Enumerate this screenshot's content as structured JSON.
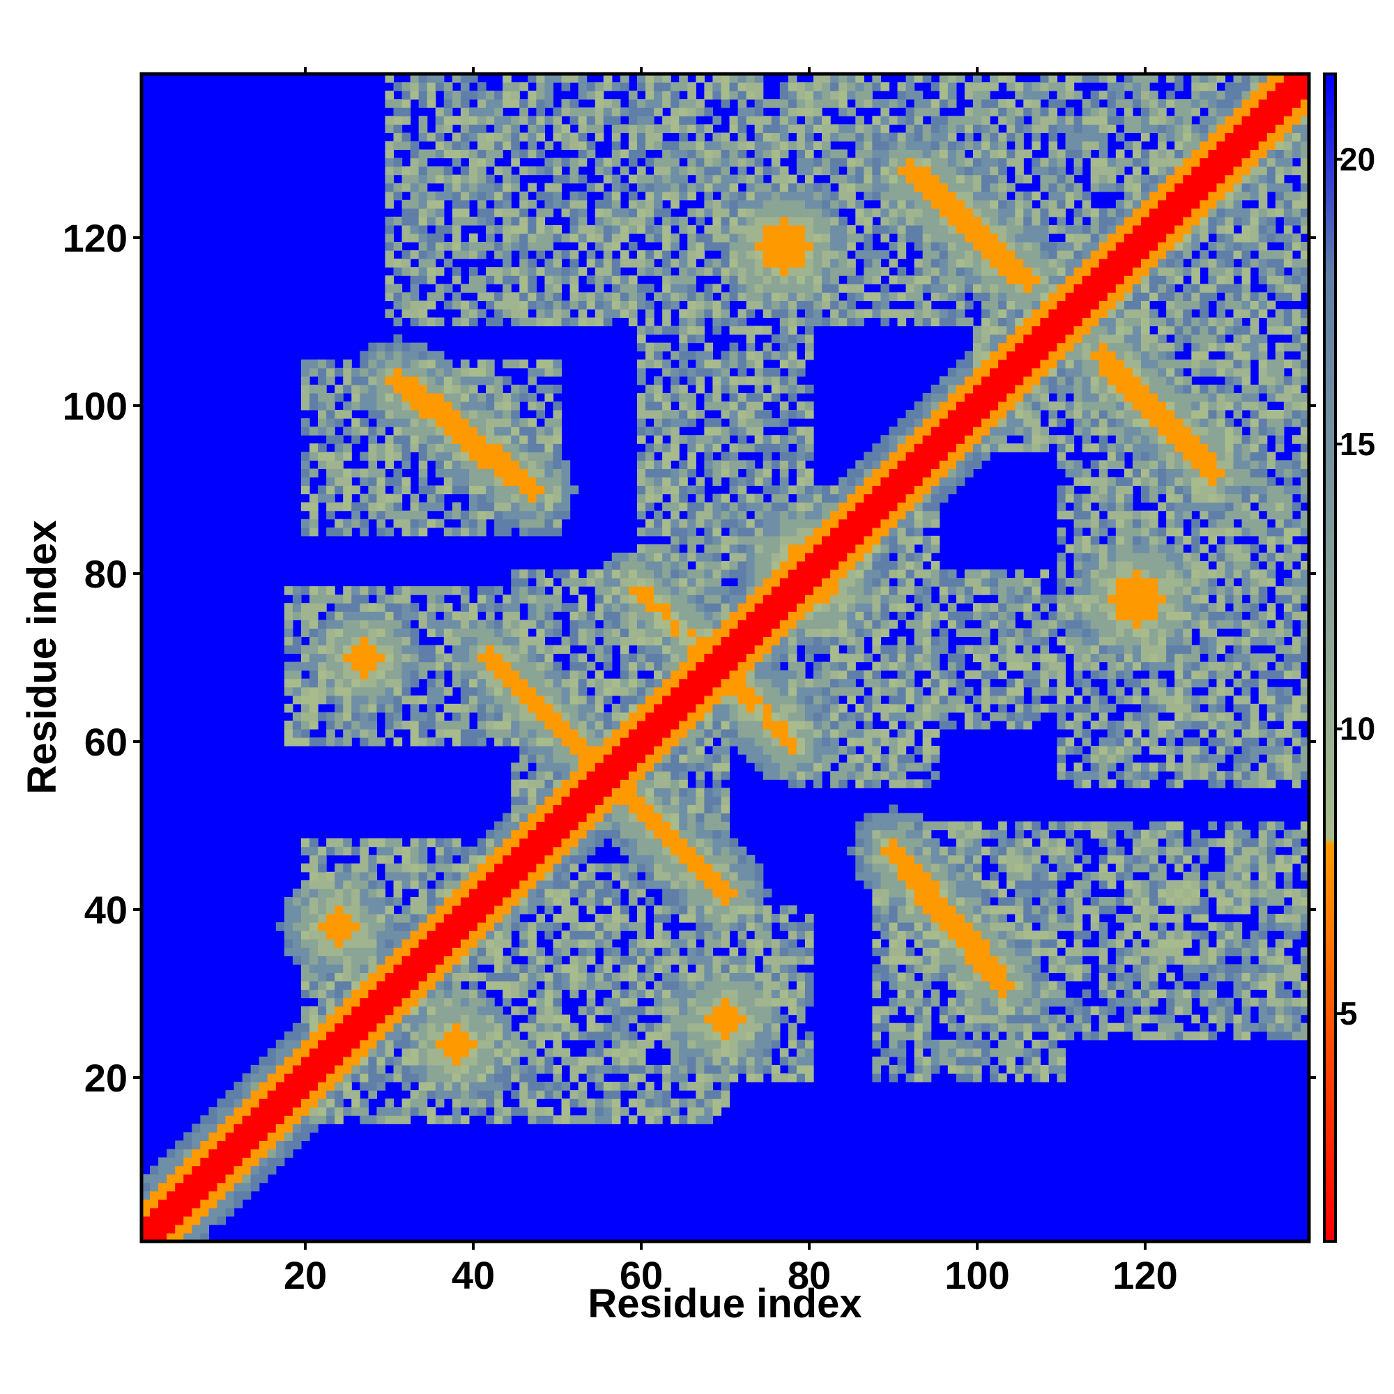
{
  "chart_data": {
    "type": "heatmap",
    "title": "",
    "xlabel": "Residue index",
    "ylabel": "Residue index",
    "xlim": [
      1,
      139
    ],
    "ylim": [
      1,
      139
    ],
    "n_residues": 139,
    "x_ticks": [
      20,
      40,
      60,
      80,
      100,
      120
    ],
    "y_ticks": [
      20,
      40,
      60,
      80,
      100,
      120
    ],
    "colorbar": {
      "range": [
        1,
        21.5
      ],
      "ticks": [
        5,
        10,
        15,
        20
      ],
      "colors": [
        "#ff0000",
        "#ff9900",
        "#a8bb8c",
        "#5f7fa8",
        "#0000ff"
      ],
      "stops": [
        1,
        8,
        10,
        18,
        21.5
      ]
    },
    "grid": false,
    "values_description_only_for_rendering": null,
    "contact_features": [
      {
        "type": "diagonal",
        "value": 1.5
      },
      {
        "type": "band",
        "from": [
          2,
          2
        ],
        "to": [
          139,
          139
        ],
        "offset_min": 1,
        "offset_max": 4,
        "value": 7
      },
      {
        "type": "antiparallel",
        "from": [
          56,
          56
        ],
        "to": [
          42,
          70
        ],
        "value": 6
      },
      {
        "type": "antiparallel",
        "from": [
          56,
          56
        ],
        "to": [
          70,
          42
        ],
        "value": 6
      },
      {
        "type": "antiparallel",
        "from": [
          60,
          78
        ],
        "to": [
          78,
          60
        ],
        "value": 6.5
      },
      {
        "type": "antiparallel",
        "from": [
          33,
          102
        ],
        "to": [
          47,
          90
        ],
        "value": 6
      },
      {
        "type": "antiparallel",
        "from": [
          102,
          33
        ],
        "to": [
          90,
          47
        ],
        "value": 6
      },
      {
        "type": "antiparallel",
        "from": [
          94,
          127
        ],
        "to": [
          106,
          115
        ],
        "value": 6
      },
      {
        "type": "antiparallel",
        "from": [
          127,
          94
        ],
        "to": [
          115,
          106
        ],
        "value": 6
      },
      {
        "type": "antiparallel",
        "from": [
          92,
          44
        ],
        "to": [
          103,
          31
        ],
        "value": 6
      },
      {
        "type": "antiparallel",
        "from": [
          44,
          92
        ],
        "to": [
          31,
          103
        ],
        "value": 6
      },
      {
        "type": "antiparallel",
        "from": [
          116,
          104
        ],
        "to": [
          128,
          92
        ],
        "value": 6
      },
      {
        "type": "antiparallel",
        "from": [
          104,
          116
        ],
        "to": [
          92,
          128
        ],
        "value": 6
      },
      {
        "type": "patch",
        "center": [
          27,
          70
        ],
        "radius": 2,
        "value": 6
      },
      {
        "type": "patch",
        "center": [
          70,
          27
        ],
        "radius": 2,
        "value": 6
      },
      {
        "type": "patch",
        "center": [
          38,
          24
        ],
        "radius": 2,
        "value": 6
      },
      {
        "type": "patch",
        "center": [
          24,
          38
        ],
        "radius": 2,
        "value": 6
      },
      {
        "type": "patch",
        "center": [
          77,
          119
        ],
        "radius": 3,
        "value": 6
      },
      {
        "type": "patch",
        "center": [
          119,
          77
        ],
        "radius": 3,
        "value": 6
      },
      {
        "type": "patch",
        "center": [
          80,
          80
        ],
        "radius": 4,
        "value": 7
      }
    ],
    "medium_regions": [
      {
        "x": [
          30,
          60
        ],
        "y": [
          110,
          139
        ]
      },
      {
        "x": [
          75,
          110
        ],
        "y": [
          110,
          139
        ]
      },
      {
        "x": [
          60,
          80
        ],
        "y": [
          80,
          139
        ]
      },
      {
        "x": [
          18,
          48
        ],
        "y": [
          60,
          78
        ]
      },
      {
        "x": [
          35,
          70
        ],
        "y": [
          15,
          45
        ]
      },
      {
        "x": [
          20,
          45
        ],
        "y": [
          15,
          48
        ]
      },
      {
        "x": [
          62,
          80
        ],
        "y": [
          20,
          40
        ]
      },
      {
        "x": [
          88,
          110
        ],
        "y": [
          20,
          50
        ]
      },
      {
        "x": [
          100,
          139
        ],
        "y": [
          25,
          50
        ]
      },
      {
        "x": [
          110,
          139
        ],
        "y": [
          80,
          139
        ]
      },
      {
        "x": [
          90,
          139
        ],
        "y": [
          62,
          80
        ]
      },
      {
        "x": [
          20,
          50
        ],
        "y": [
          85,
          105
        ]
      },
      {
        "x": [
          45,
          70
        ],
        "y": [
          50,
          80
        ]
      },
      {
        "x": [
          78,
          95
        ],
        "y": [
          55,
          90
        ]
      },
      {
        "x": [
          110,
          139
        ],
        "y": [
          55,
          75
        ]
      },
      {
        "x": [
          100,
          125
        ],
        "y": [
          95,
          115
        ]
      }
    ]
  }
}
